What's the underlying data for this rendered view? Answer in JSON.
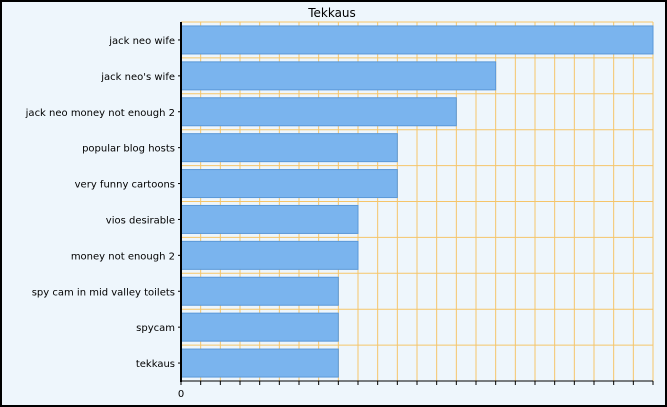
{
  "chart_data": {
    "type": "bar",
    "orientation": "horizontal",
    "title": "Tekkaus",
    "xlabel": "",
    "ylabel": "",
    "categories": [
      "jack neo wife",
      "jack neo's wife",
      "jack neo money not enough 2",
      "popular blog hosts",
      "very funny cartoons",
      "vios desirable",
      "money not enough 2",
      "spy cam in mid valley toilets",
      "spycam",
      "tekkaus"
    ],
    "values": [
      24,
      16,
      14,
      11,
      11,
      9,
      9,
      8,
      8,
      8
    ],
    "xlim": [
      0,
      24
    ],
    "x_tick_labels": [
      "0"
    ],
    "grid": true,
    "legend": "none",
    "colors": {
      "bar": "#7ab4ee",
      "bar_border": "#5b98d8",
      "grid": "#f5c56a",
      "plot_bg": "#eef6fc",
      "axis": "#000000",
      "frame": "#000000"
    }
  }
}
